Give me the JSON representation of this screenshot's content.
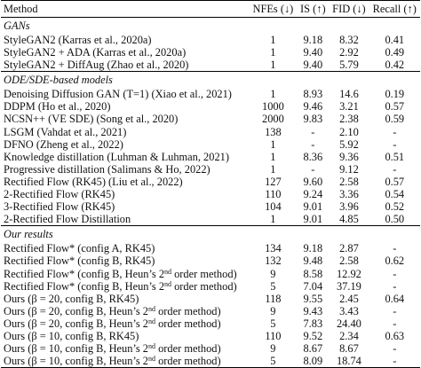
{
  "header": {
    "method": "Method",
    "nfe": "NFEs (↓)",
    "is": "IS (↑)",
    "fid": "FID (↓)",
    "recall": "Recall (↑)"
  },
  "sections": [
    {
      "title": "GANs",
      "rows": [
        {
          "method": "StyleGAN2 (Karras et al., 2020a)",
          "nfe": "1",
          "is": "9.18",
          "fid": "8.32",
          "recall": "0.41"
        },
        {
          "method": "StyleGAN2 + ADA (Karras et al., 2020a)",
          "nfe": "1",
          "is": "9.40",
          "fid": "2.92",
          "recall": "0.49"
        },
        {
          "method": "StyleGAN2 + DiffAug (Zhao et al., 2020)",
          "nfe": "1",
          "is": "9.40",
          "fid": "5.79",
          "recall": "0.42"
        }
      ]
    },
    {
      "title": "ODE/SDE-based models",
      "rows": [
        {
          "method": "Denoising Diffusion GAN (T=1) (Xiao et al., 2021)",
          "nfe": "1",
          "is": "8.93",
          "fid": "14.6",
          "recall": "0.19"
        },
        {
          "method": "DDPM (Ho et al., 2020)",
          "nfe": "1000",
          "is": "9.46",
          "fid": "3.21",
          "recall": "0.57"
        },
        {
          "method": "NCSN++ (VE SDE) (Song et al., 2020)",
          "nfe": "2000",
          "is": "9.83",
          "fid": "2.38",
          "recall": "0.59"
        },
        {
          "method": "LSGM (Vahdat et al., 2021)",
          "nfe": "138",
          "is": "-",
          "fid": "2.10",
          "recall": "-"
        },
        {
          "method": "DFNO (Zheng et al., 2022)",
          "nfe": "1",
          "is": "-",
          "fid": "5.92",
          "recall": "-"
        },
        {
          "method": "Knowledge distillation (Luhman & Luhman, 2021)",
          "nfe": "1",
          "is": "8.36",
          "fid": "9.36",
          "recall": "0.51"
        },
        {
          "method": "Progressive distillation (Salimans & Ho, 2022)",
          "nfe": "1",
          "is": "-",
          "fid": "9.12",
          "recall": "-"
        },
        {
          "method": "Rectified Flow (RK45) (Liu et al., 2022)",
          "nfe": "127",
          "is": "9.60",
          "fid": "2.58",
          "recall": "0.57"
        },
        {
          "method": "2-Rectified Flow (RK45)",
          "nfe": "110",
          "is": "9.24",
          "fid": "3.36",
          "recall": "0.54"
        },
        {
          "method": "3-Rectified Flow (RK45)",
          "nfe": "104",
          "is": "9.01",
          "fid": "3.96",
          "recall": "0.52"
        },
        {
          "method": "2-Rectified Flow Distillation",
          "nfe": "1",
          "is": "9.01",
          "fid": "4.85",
          "recall": "0.50"
        }
      ]
    },
    {
      "title": "Our results",
      "rows": [
        {
          "method": "Rectified Flow* (config A, RK45)",
          "nfe": "134",
          "is": "9.18",
          "fid": "2.87",
          "recall": "-"
        },
        {
          "method": "Rectified Flow* (config B, RK45)",
          "nfe": "132",
          "is": "9.48",
          "fid": "2.58",
          "recall": "0.62"
        },
        {
          "method": "Rectified Flow* (config B, Heun’s 2",
          "sup": "nd",
          "method_end": " order method)",
          "nfe": "9",
          "is": "8.58",
          "fid": "12.92",
          "recall": "-"
        },
        {
          "method": "Rectified Flow* (config B, Heun’s 2",
          "sup": "nd",
          "method_end": " order method)",
          "nfe": "5",
          "is": "7.04",
          "fid": "37.19",
          "recall": "-"
        },
        {
          "method": "Ours (β = 20, config B, RK45)",
          "nfe": "118",
          "is": "9.55",
          "fid": "2.45",
          "recall": "0.64"
        },
        {
          "method": "Ours (β = 20, config B, Heun’s 2",
          "sup": "nd",
          "method_end": " order method)",
          "nfe": "9",
          "is": "9.43",
          "fid": "3.43",
          "recall": "-"
        },
        {
          "method": "Ours (β = 20, config B, Heun’s 2",
          "sup": "nd",
          "method_end": " order method)",
          "nfe": "5",
          "is": "7.83",
          "fid": "24.40",
          "recall": "-"
        },
        {
          "method": "Ours (β = 10, config B, RK45)",
          "nfe": "110",
          "is": "9.52",
          "fid": "2.34",
          "recall": "0.63"
        },
        {
          "method": "Ours (β = 10, config B, Heun’s 2",
          "sup": "nd",
          "method_end": " order method)",
          "nfe": "9",
          "is": "8.67",
          "fid": "8.67",
          "recall": "-"
        },
        {
          "method": "Ours (β = 10, config B, Heun’s 2",
          "sup": "nd",
          "method_end": " order method)",
          "nfe": "5",
          "is": "8.09",
          "fid": "18.74",
          "recall": "-"
        }
      ]
    }
  ]
}
